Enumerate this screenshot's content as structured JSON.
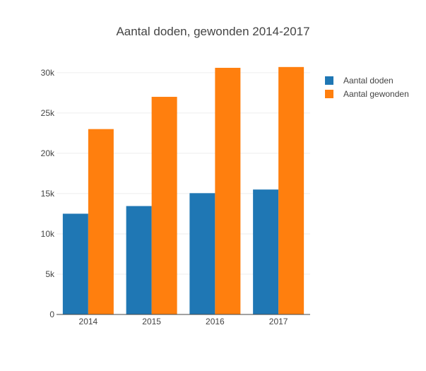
{
  "chart_data": {
    "type": "bar",
    "title": "Aantal doden, gewonden 2014-2017",
    "xlabel": "",
    "ylabel": "",
    "categories": [
      "2014",
      "2015",
      "2016",
      "2017"
    ],
    "series": [
      {
        "name": "Aantal doden",
        "color": "#1f77b4",
        "values": [
          12500,
          13450,
          15050,
          15500
        ]
      },
      {
        "name": "Aantal gewonden",
        "color": "#ff7f0e",
        "values": [
          23000,
          27000,
          30600,
          30700
        ]
      }
    ],
    "ylim": [
      0,
      32000
    ],
    "y_ticks": [
      0,
      5000,
      10000,
      15000,
      20000,
      25000,
      30000
    ],
    "y_tick_labels": [
      "0",
      "5k",
      "10k",
      "15k",
      "20k",
      "25k",
      "30k"
    ],
    "grid": true,
    "legend": "top-right"
  }
}
